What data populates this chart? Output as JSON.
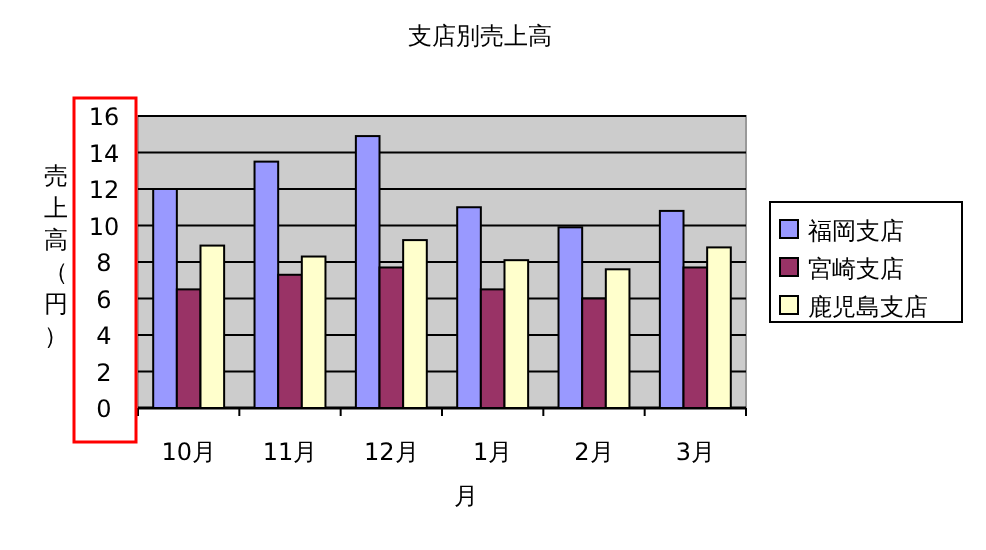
{
  "chart_data": {
    "type": "bar",
    "title": "支店別売上高",
    "xlabel": "月",
    "ylabel": "売上高（円）",
    "categories": [
      "10月",
      "11月",
      "12月",
      "1月",
      "2月",
      "3月"
    ],
    "series": [
      {
        "name": "福岡支店",
        "color": "#9999ff",
        "values": [
          12,
          13.5,
          14.9,
          11,
          9.9,
          10.8
        ]
      },
      {
        "name": "宮崎支店",
        "color": "#993366",
        "values": [
          6.5,
          7.3,
          7.7,
          6.5,
          6.0,
          7.7
        ]
      },
      {
        "name": "鹿児島支店",
        "color": "#ffffcc",
        "values": [
          8.9,
          8.3,
          9.2,
          8.1,
          7.6,
          8.8
        ]
      }
    ],
    "ylim": [
      0,
      16
    ],
    "yticks": [
      0,
      2,
      4,
      6,
      8,
      10,
      12,
      14,
      16
    ],
    "grid": "y",
    "legend": "right"
  }
}
